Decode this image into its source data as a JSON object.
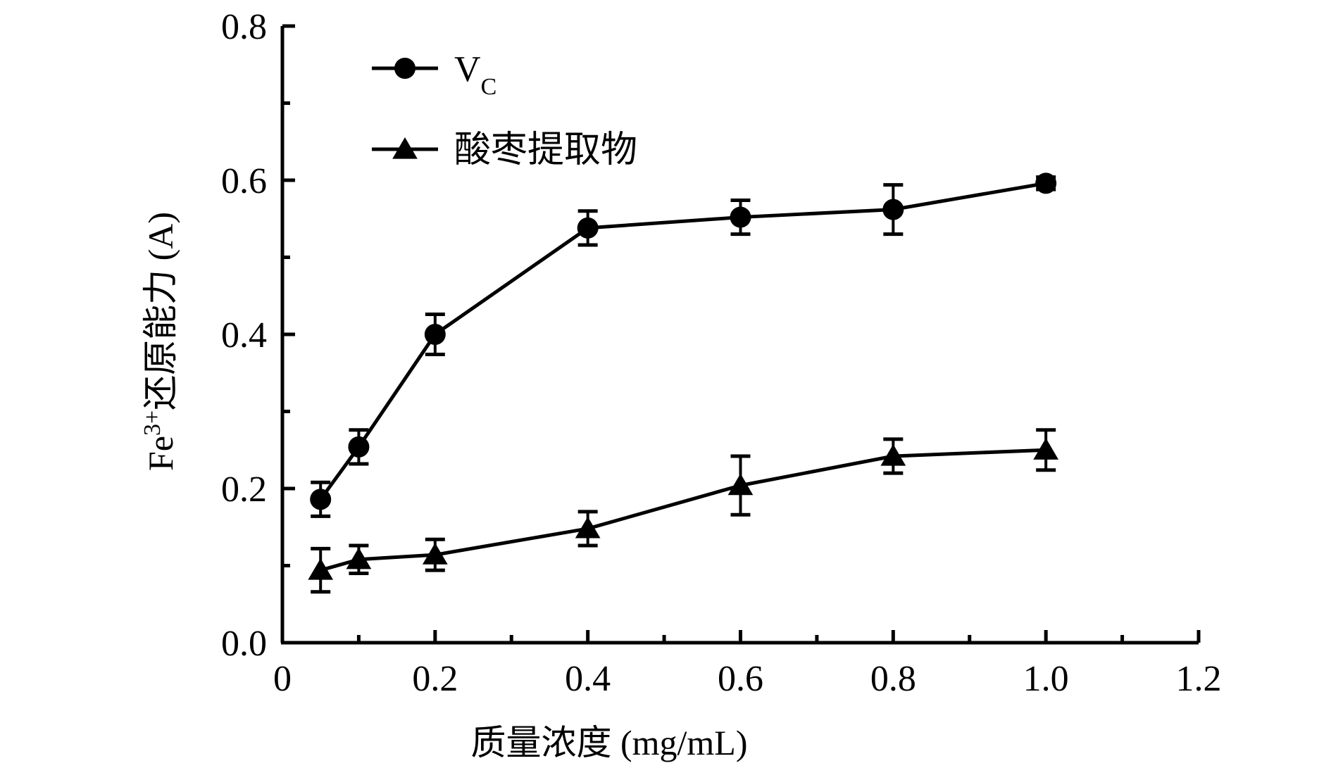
{
  "chart_data": {
    "type": "line",
    "title": "",
    "xlabel": "质量浓度 (mg/mL)",
    "ylabel_prefix": "Fe",
    "ylabel_sup": "3+",
    "ylabel_suffix": "还原能力 (A)",
    "xlim": [
      0,
      1.2
    ],
    "ylim": [
      0,
      0.8
    ],
    "x_ticks": [
      0,
      0.2,
      0.4,
      0.6,
      0.8,
      1.0,
      1.2
    ],
    "x_tick_labels": [
      "0",
      "0.2",
      "0.4",
      "0.6",
      "0.8",
      "1.0",
      "1.2"
    ],
    "y_ticks": [
      0.0,
      0.2,
      0.4,
      0.6,
      0.8
    ],
    "y_tick_labels": [
      "0.0",
      "0.2",
      "0.4",
      "0.6",
      "0.8"
    ],
    "grid": false,
    "legend_position": "top-left",
    "series": [
      {
        "name_main": "V",
        "name_sub": "C",
        "marker": "circle",
        "x": [
          0.05,
          0.1,
          0.2,
          0.4,
          0.6,
          0.8,
          1.0
        ],
        "y": [
          0.186,
          0.254,
          0.4,
          0.538,
          0.552,
          0.562,
          0.596
        ],
        "err": [
          0.022,
          0.022,
          0.026,
          0.022,
          0.022,
          0.032,
          0.008
        ]
      },
      {
        "name_main": "酸枣提取物",
        "name_sub": "",
        "marker": "triangle",
        "x": [
          0.05,
          0.1,
          0.2,
          0.4,
          0.6,
          0.8,
          1.0
        ],
        "y": [
          0.094,
          0.108,
          0.114,
          0.148,
          0.204,
          0.242,
          0.25
        ],
        "err": [
          0.028,
          0.018,
          0.02,
          0.022,
          0.038,
          0.022,
          0.026
        ]
      }
    ]
  }
}
